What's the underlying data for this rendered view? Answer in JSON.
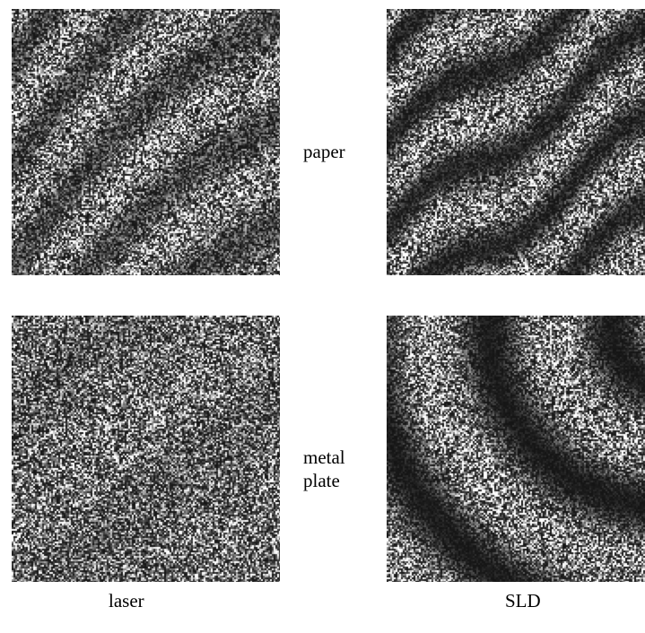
{
  "rows": [
    {
      "label": "paper"
    },
    {
      "label": "metal\nplate"
    }
  ],
  "columns": [
    {
      "label": "laser"
    },
    {
      "label": "SLD"
    }
  ],
  "panels": [
    {
      "row": "paper",
      "column": "laser",
      "pattern": "diagonal speckle fringes, low contrast"
    },
    {
      "row": "paper",
      "column": "SLD",
      "pattern": "diagonal speckle fringes, higher contrast"
    },
    {
      "row": "metal plate",
      "column": "laser",
      "pattern": "uniform speckle, nearly no fringes"
    },
    {
      "row": "metal plate",
      "column": "SLD",
      "pattern": "broad curved fringes, high contrast"
    }
  ]
}
